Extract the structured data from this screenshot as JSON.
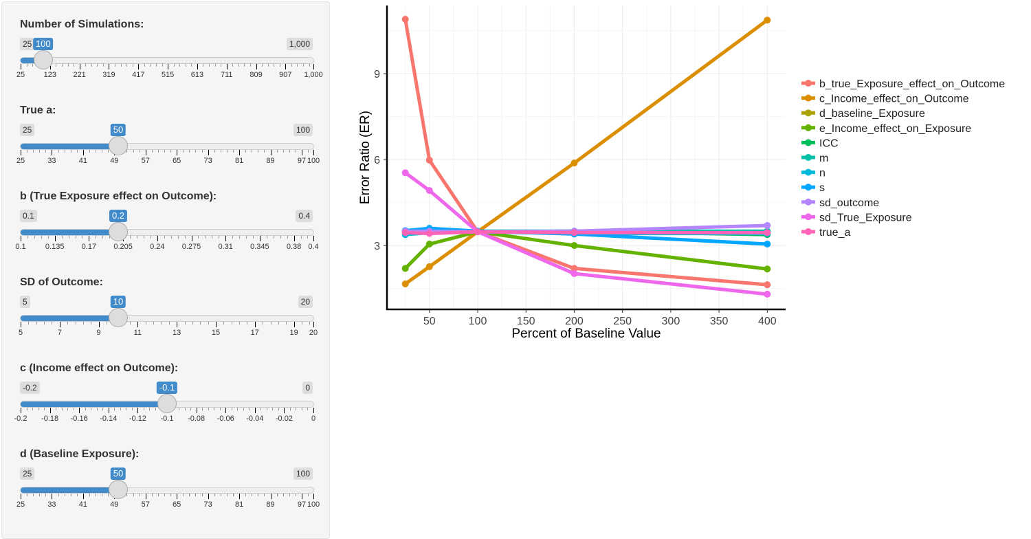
{
  "sliders": [
    {
      "label": "Number of Simulations:",
      "min": 25,
      "max": 1000,
      "value": 100,
      "min_label": "25",
      "max_label": "1,000",
      "value_label": "100",
      "ticks": [
        25,
        123,
        221,
        319,
        417,
        515,
        613,
        711,
        809,
        907,
        1000
      ],
      "tick_labels": [
        "25",
        "123",
        "221",
        "319",
        "417",
        "515",
        "613",
        "711",
        "809",
        "907",
        "1,000"
      ]
    },
    {
      "label": "True a:",
      "min": 25,
      "max": 100,
      "value": 50,
      "min_label": "25",
      "max_label": "100",
      "value_label": "50",
      "ticks": [
        25,
        33,
        41,
        49,
        57,
        65,
        73,
        81,
        89,
        97,
        100
      ],
      "tick_labels": [
        "25",
        "33",
        "41",
        "49",
        "57",
        "65",
        "73",
        "81",
        "89",
        "97",
        "100"
      ]
    },
    {
      "label": "b (True Exposure effect on Outcome):",
      "min": 0.1,
      "max": 0.4,
      "value": 0.2,
      "min_label": "0.1",
      "max_label": "0.4",
      "value_label": "0.2",
      "ticks": [
        0.1,
        0.135,
        0.17,
        0.205,
        0.24,
        0.275,
        0.31,
        0.345,
        0.38,
        0.4
      ],
      "tick_labels": [
        "0.1",
        "0.135",
        "0.17",
        "0.205",
        "0.24",
        "0.275",
        "0.31",
        "0.345",
        "0.38",
        "0.4"
      ]
    },
    {
      "label": "SD of Outcome:",
      "min": 5,
      "max": 20,
      "value": 10,
      "min_label": "5",
      "max_label": "20",
      "value_label": "10",
      "ticks": [
        5,
        7,
        9,
        11,
        13,
        15,
        17,
        19,
        20
      ],
      "tick_labels": [
        "5",
        "7",
        "9",
        "11",
        "13",
        "15",
        "17",
        "19",
        "20"
      ]
    },
    {
      "label": "c (Income effect on Outcome):",
      "min": -0.2,
      "max": 0,
      "value": -0.1,
      "min_label": "-0.2",
      "max_label": "0",
      "value_label": "-0.1",
      "ticks": [
        -0.2,
        -0.18,
        -0.16,
        -0.14,
        -0.12,
        -0.1,
        -0.08,
        -0.06,
        -0.04,
        -0.02,
        0
      ],
      "tick_labels": [
        "-0.2",
        "-0.18",
        "-0.16",
        "-0.14",
        "-0.12",
        "-0.1",
        "-0.08",
        "-0.06",
        "-0.04",
        "-0.02",
        "0"
      ]
    },
    {
      "label": "d (Baseline Exposure):",
      "min": 25,
      "max": 100,
      "value": 50,
      "min_label": "25",
      "max_label": "100",
      "value_label": "50",
      "ticks": [
        25,
        33,
        41,
        49,
        57,
        65,
        73,
        81,
        89,
        97,
        100
      ],
      "tick_labels": [
        "25",
        "33",
        "41",
        "49",
        "57",
        "65",
        "73",
        "81",
        "89",
        "97",
        "100"
      ]
    }
  ],
  "colors": {
    "slider_accent": "#428bca",
    "panel_bg": "#f5f5f5"
  },
  "chart_data": {
    "type": "line",
    "xlabel": "Percent of Baseline Value",
    "ylabel": "Error Ratio (ER)",
    "x": [
      25,
      50,
      100,
      200,
      400
    ],
    "xticks": [
      50,
      100,
      150,
      200,
      250,
      300,
      350,
      400
    ],
    "yticks": [
      3,
      6,
      9
    ],
    "xlim": [
      6,
      419
    ],
    "ylim": [
      0.77,
      11.38
    ],
    "grid": true,
    "legend_position": "right",
    "series": [
      {
        "name": "b_true_Exposure_effect_on_Outcome",
        "color": "#F8766D",
        "values": [
          10.9,
          5.98,
          3.48,
          2.2,
          1.63
        ]
      },
      {
        "name": "c_Income_effect_on_Outcome",
        "color": "#DB8E00",
        "values": [
          1.66,
          2.26,
          3.48,
          5.88,
          10.87
        ]
      },
      {
        "name": "d_baseline_Exposure",
        "color": "#AEA200",
        "values": [
          3.45,
          3.45,
          3.48,
          3.45,
          3.45
        ]
      },
      {
        "name": "e_Income_effect_on_Exposure",
        "color": "#64B200",
        "values": [
          2.2,
          3.05,
          3.48,
          3.0,
          2.18
        ]
      },
      {
        "name": "ICC",
        "color": "#00BD5C",
        "values": [
          3.5,
          3.47,
          3.48,
          3.5,
          3.38
        ]
      },
      {
        "name": "m",
        "color": "#00C1A7",
        "values": [
          3.5,
          3.5,
          3.5,
          3.5,
          3.5
        ]
      },
      {
        "name": "n",
        "color": "#00BADE",
        "values": [
          3.38,
          3.45,
          3.48,
          3.42,
          3.42
        ]
      },
      {
        "name": "s",
        "color": "#00A6FF",
        "values": [
          3.52,
          3.6,
          3.5,
          3.4,
          3.05
        ]
      },
      {
        "name": "sd_outcome",
        "color": "#B385FF",
        "values": [
          3.5,
          3.5,
          3.48,
          3.5,
          3.7
        ]
      },
      {
        "name": "sd_True_Exposure",
        "color": "#EF67EB",
        "values": [
          5.54,
          4.92,
          3.48,
          2.02,
          1.3
        ]
      },
      {
        "name": "true_a",
        "color": "#FF63B6",
        "values": [
          3.45,
          3.42,
          3.48,
          3.45,
          3.45
        ]
      }
    ]
  }
}
